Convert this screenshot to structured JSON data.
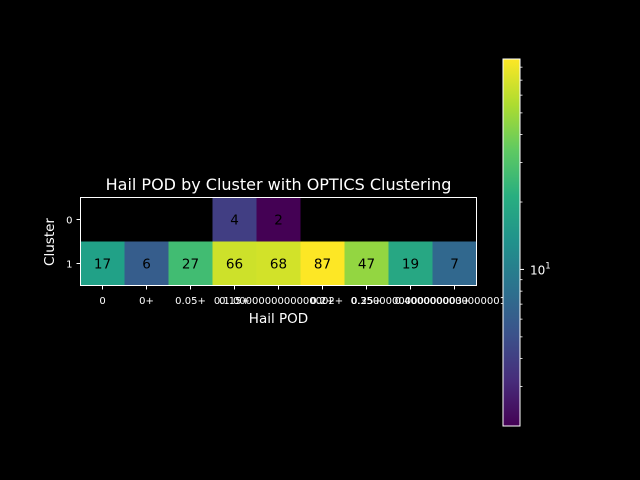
{
  "chart_data": {
    "type": "heatmap",
    "title": "Hail POD by Cluster with OPTICS Clustering",
    "xlabel": "Hail POD",
    "ylabel": "Cluster",
    "x_tick_labels": [
      "0",
      "0+",
      "0.05+",
      "0.15+",
      "0.1.0000000000000002+",
      "0.2+",
      "0.25+",
      "0.3500000000000003+",
      "0.4000000000000001+"
    ],
    "y_tick_labels": [
      "0",
      "1"
    ],
    "rows": [
      [
        null,
        null,
        null,
        4,
        2,
        null,
        null,
        null,
        null
      ],
      [
        17,
        6,
        27,
        66,
        68,
        87,
        47,
        19,
        7
      ]
    ],
    "color_scale": "log",
    "colormap": "viridis",
    "vmin": 2,
    "vmax": 87,
    "missing_color": "#000000",
    "colorbar_major_ticks": [
      {
        "value": 10,
        "label": "10",
        "exponent": "1"
      }
    ],
    "colorbar_minor_ticks": [
      3,
      4,
      5,
      6,
      7,
      8,
      9,
      20,
      30,
      40,
      50,
      60,
      70,
      80
    ],
    "colors": {
      "background": "#000000",
      "foreground": "#ffffff"
    }
  }
}
